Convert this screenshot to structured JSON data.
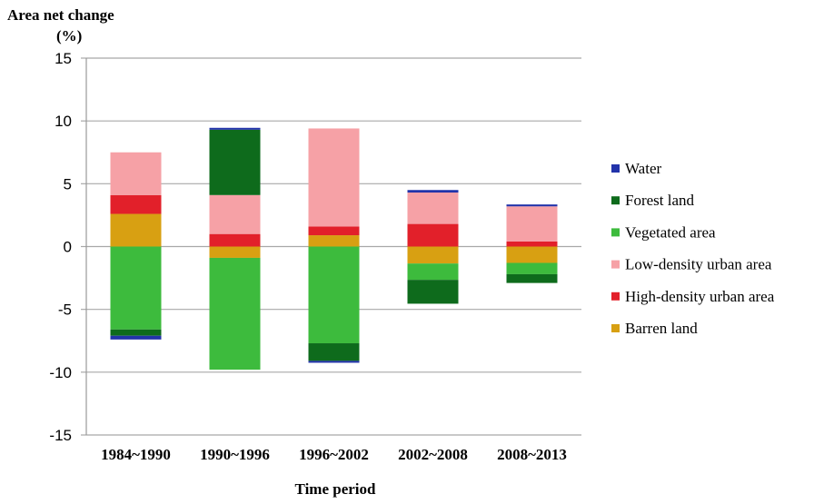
{
  "chart_data": {
    "type": "bar",
    "stacked": true,
    "title": "",
    "ylabel_line1": "Area net change",
    "ylabel_line2": "(%)",
    "xlabel": "Time period",
    "categories": [
      "1984~1990",
      "1990~1996",
      "1996~2002",
      "2002~2008",
      "2008~2013"
    ],
    "ylim": [
      -15,
      15
    ],
    "yticks": [
      15,
      10,
      5,
      0,
      -5,
      -10,
      -15
    ],
    "grid": true,
    "legend_position": "right",
    "series": [
      {
        "name": "Water",
        "color": "#2233aa",
        "values": [
          -0.3,
          0.15,
          -0.15,
          0.2,
          0.15
        ]
      },
      {
        "name": "Forest land",
        "color": "#0e6b1c",
        "values": [
          -0.5,
          5.2,
          -1.4,
          -1.9,
          -0.7
        ]
      },
      {
        "name": "Vegetated area",
        "color": "#3dbb3d",
        "values": [
          -6.6,
          -8.9,
          -7.7,
          -1.3,
          -0.9
        ]
      },
      {
        "name": "Low-density urban area",
        "color": "#f6a1a6",
        "values": [
          3.4,
          3.1,
          7.8,
          2.5,
          2.8
        ]
      },
      {
        "name": "High-density urban area",
        "color": "#e2202a",
        "values": [
          1.5,
          1.0,
          0.7,
          1.8,
          0.4
        ]
      },
      {
        "name": "Barren land",
        "color": "#d8a012",
        "values": [
          2.6,
          -0.9,
          0.9,
          -1.35,
          -1.3
        ]
      }
    ],
    "stack_order": [
      "Barren land",
      "High-density urban area",
      "Low-density urban area",
      "Forest land",
      "Water"
    ],
    "neg_stack_order": [
      "Barren land",
      "Vegetated area",
      "Forest land",
      "Water"
    ]
  }
}
